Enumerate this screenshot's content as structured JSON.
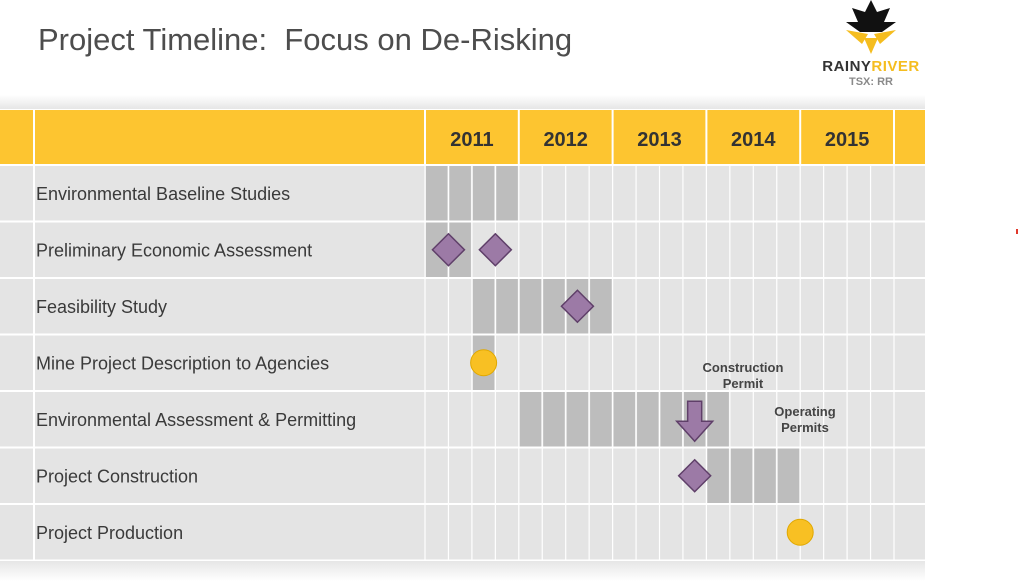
{
  "slide": {
    "title": "Project Timeline:  Focus on De-Risking"
  },
  "logo": {
    "name_part1": "RAINY",
    "name_part2": "RIVER",
    "ticker": "TSX: RR",
    "icon": "maple-leaf-star-icon"
  },
  "colors": {
    "header_yellow": "#fdc530",
    "bar_gray": "#bdbdbd",
    "row_bg": "#e4e4e4",
    "milestone_purple": "#9c7aa6",
    "circle_yellow": "#f8c023"
  },
  "chart_data": {
    "type": "gantt",
    "title": "",
    "years": [
      "2011",
      "2012",
      "2013",
      "2014",
      "2015"
    ],
    "time_unit": "quarter",
    "rows": [
      {
        "task": "Environmental Baseline Studies",
        "start": 2011.0,
        "end": 2012.0
      },
      {
        "task": "Preliminary Economic Assessment",
        "start": 2011.0,
        "end": 2011.5
      },
      {
        "task": "Feasibility Study",
        "start": 2011.5,
        "end": 2013.0
      },
      {
        "task": "Mine Project Description to Agencies",
        "start": 2011.5,
        "end": 2011.75
      },
      {
        "task": "Environmental Assessment & Permitting",
        "start": 2012.0,
        "end": 2014.25
      },
      {
        "task": "Project Construction",
        "start": 2014.0,
        "end": 2015.0
      },
      {
        "task": "Project Production",
        "start": null,
        "end": null
      }
    ],
    "milestones": [
      {
        "row": 1,
        "time": 2011.25,
        "shape": "diamond"
      },
      {
        "row": 1,
        "time": 2011.75,
        "shape": "diamond"
      },
      {
        "row": 2,
        "time": 2012.625,
        "shape": "diamond"
      },
      {
        "row": 3,
        "time": 2011.625,
        "shape": "circle"
      },
      {
        "row": 5,
        "time": 2013.875,
        "shape": "diamond"
      },
      {
        "row": 6,
        "time": 2015.0,
        "shape": "circle"
      },
      {
        "row": 4,
        "time": 2013.875,
        "shape": "down-arrow"
      }
    ],
    "annotations": [
      {
        "text": "Construction Permit",
        "lines": [
          "Construction",
          "Permit"
        ]
      },
      {
        "text": "Operating Permits",
        "lines": [
          "Operating",
          "Permits"
        ]
      }
    ]
  }
}
